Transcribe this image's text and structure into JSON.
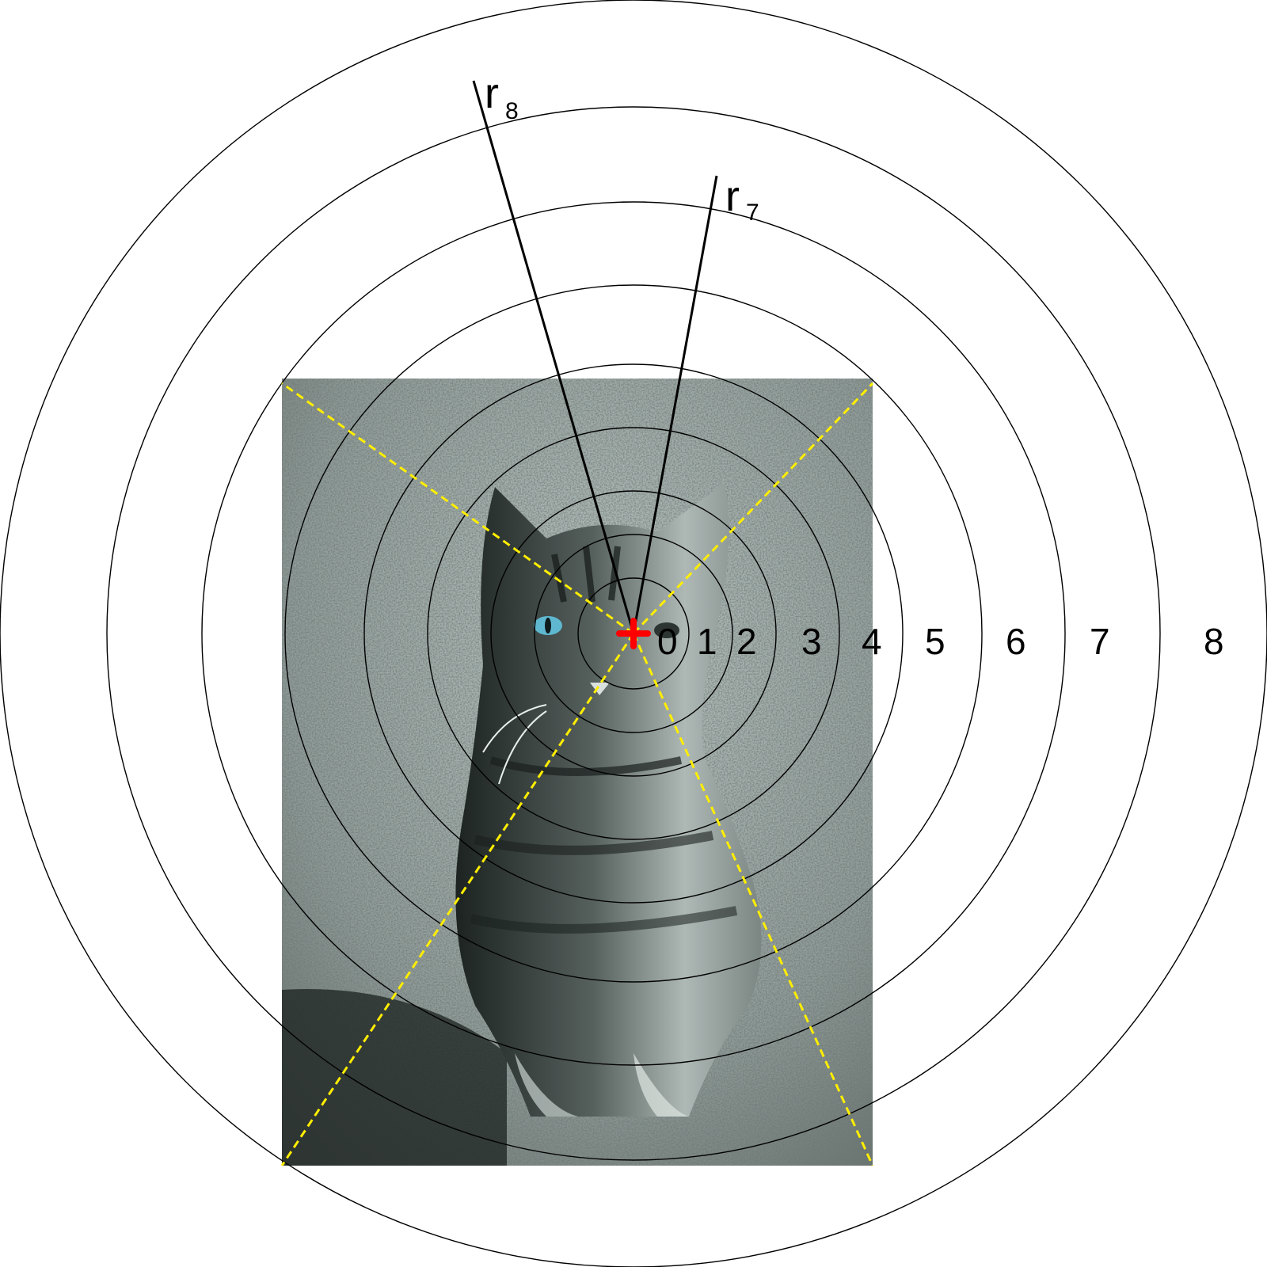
{
  "diagram": {
    "photo": {
      "subject": "tabby-cat-photograph",
      "tone": [
        "#2b3330",
        "#7f8c88",
        "#c9d3d0"
      ],
      "eye_color": "#5fb8d0"
    },
    "rings": [
      {
        "label": "0"
      },
      {
        "label": "1"
      },
      {
        "label": "2"
      },
      {
        "label": "3"
      },
      {
        "label": "4"
      },
      {
        "label": "5"
      },
      {
        "label": "6"
      },
      {
        "label": "7"
      },
      {
        "label": "8"
      }
    ],
    "radius_labels": [
      {
        "main": "r",
        "sub": "8"
      },
      {
        "main": "r",
        "sub": "7"
      }
    ],
    "colors": {
      "rings": "#000000",
      "diagonals": "#ffee00",
      "center_marker": "#ff0000"
    }
  }
}
